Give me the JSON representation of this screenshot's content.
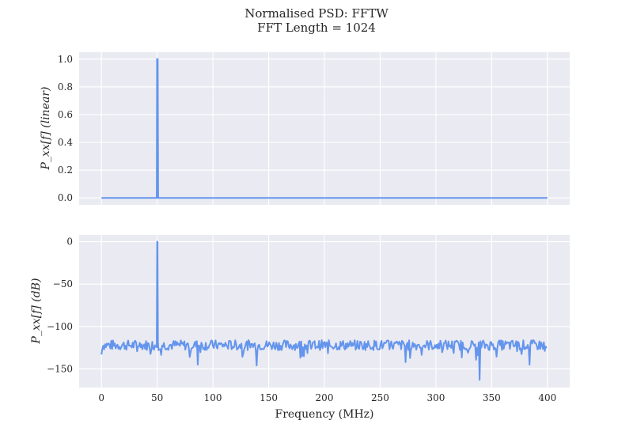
{
  "chart_data": {
    "type": "line",
    "title_line1": "Normalised PSD: FFTW",
    "title_line2": "FFT Length = 1024",
    "xlabel": "Frequency (MHz)",
    "xlim": [
      -20,
      420
    ],
    "x_ticks": [
      0,
      50,
      100,
      150,
      200,
      250,
      300,
      350,
      400
    ],
    "color": "#6495ED",
    "background": "#EAEAF2",
    "grid": true,
    "panels": [
      {
        "name": "linear",
        "ylabel": "P_xx[f] (linear)",
        "ylim": [
          -0.05,
          1.05
        ],
        "y_ticks": [
          "0.0",
          "0.2",
          "0.4",
          "0.6",
          "0.8",
          "1.0"
        ],
        "y_tick_values": [
          0,
          0.2,
          0.4,
          0.6,
          0.8,
          1.0
        ],
        "peak": {
          "x": 50,
          "y": 1.0
        },
        "floor": 0.0
      },
      {
        "name": "dB",
        "ylabel": "P_xx[f] (dB)",
        "ylim": [
          -172,
          8
        ],
        "y_ticks": [
          "0",
          "−50",
          "−100",
          "−150"
        ],
        "y_tick_values": [
          0,
          -50,
          -100,
          -150
        ],
        "peak": {
          "x": 50,
          "y": 0
        },
        "noise_floor_db": -122,
        "noise_range_db": [
          -135,
          -112
        ],
        "notable_dips": [
          {
            "x": 86,
            "y": -145
          },
          {
            "x": 139,
            "y": -146
          },
          {
            "x": 273,
            "y": -142
          },
          {
            "x": 339,
            "y": -163
          },
          {
            "x": 384,
            "y": -145
          }
        ]
      }
    ]
  }
}
